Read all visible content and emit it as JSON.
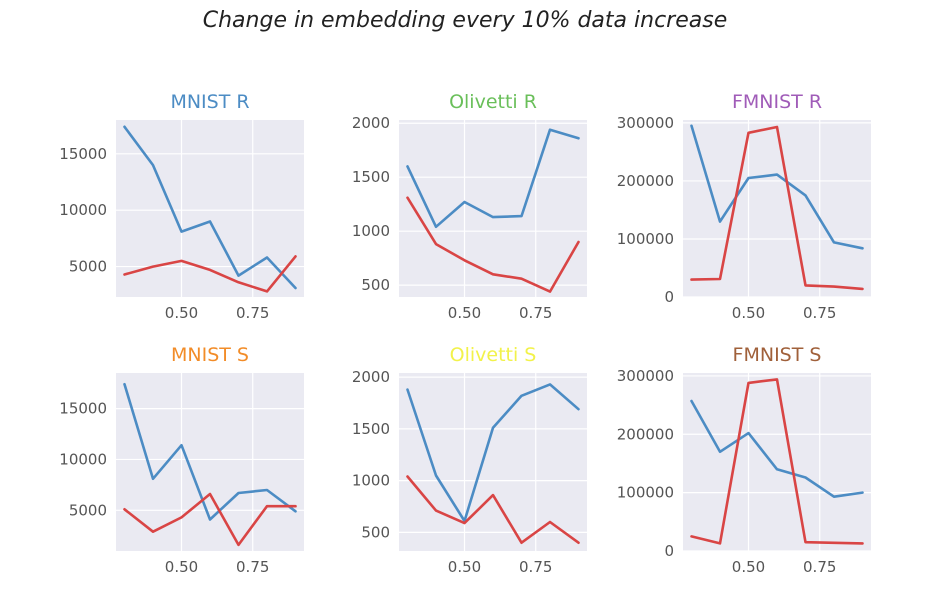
{
  "figure": {
    "suptitle": "Change in embedding every 10% data increase"
  },
  "style": {
    "axes_bg": "#eaeaf2",
    "grid": "#ffffff",
    "blue": "#4c8cc4",
    "red": "#d94545"
  },
  "chart_data": [
    {
      "type": "line",
      "title": "MNIST R",
      "title_color": "#4c8cc4",
      "x": [
        0.3,
        0.4,
        0.5,
        0.6,
        0.7,
        0.8,
        0.9
      ],
      "xlim": [
        0.27,
        0.93
      ],
      "xticks": [
        0.5,
        0.75
      ],
      "xticklabels": [
        "0.50",
        "0.75"
      ],
      "ylim": [
        2300,
        18000
      ],
      "yticks": [
        5000,
        10000,
        15000
      ],
      "yticklabels": [
        "5000",
        "10000",
        "15000"
      ],
      "series": [
        {
          "color": "#4c8cc4",
          "values": [
            17400,
            14000,
            8100,
            9000,
            4200,
            5800,
            3100
          ]
        },
        {
          "color": "#d94545",
          "values": [
            4300,
            5000,
            5500,
            4700,
            3600,
            2800,
            5900
          ]
        }
      ]
    },
    {
      "type": "line",
      "title": "Olivetti R",
      "title_color": "#6abf5a",
      "x": [
        0.3,
        0.4,
        0.5,
        0.6,
        0.7,
        0.8,
        0.9
      ],
      "xlim": [
        0.27,
        0.93
      ],
      "xticks": [
        0.5,
        0.75
      ],
      "xticklabels": [
        "0.50",
        "0.75"
      ],
      "ylim": [
        390,
        2030
      ],
      "yticks": [
        500,
        1000,
        1500,
        2000
      ],
      "yticklabels": [
        "500",
        "1000",
        "1500",
        "2000"
      ],
      "series": [
        {
          "color": "#4c8cc4",
          "values": [
            1600,
            1040,
            1270,
            1130,
            1140,
            1940,
            1860
          ]
        },
        {
          "color": "#d94545",
          "values": [
            1310,
            880,
            730,
            600,
            560,
            440,
            900
          ]
        }
      ]
    },
    {
      "type": "line",
      "title": "FMNIST R",
      "title_color": "#a05cb8",
      "x": [
        0.3,
        0.4,
        0.5,
        0.6,
        0.7,
        0.8,
        0.9
      ],
      "xlim": [
        0.27,
        0.93
      ],
      "xticks": [
        0.5,
        0.75
      ],
      "xticklabels": [
        "0.50",
        "0.75"
      ],
      "ylim": [
        0,
        305000
      ],
      "yticks": [
        0,
        100000,
        200000,
        300000
      ],
      "yticklabels": [
        "0",
        "100000",
        "200000",
        "300000"
      ],
      "series": [
        {
          "color": "#4c8cc4",
          "values": [
            295000,
            130000,
            205000,
            211000,
            175000,
            94000,
            84000
          ]
        },
        {
          "color": "#d94545",
          "values": [
            30000,
            31000,
            283000,
            293000,
            20000,
            18000,
            14000
          ]
        }
      ]
    },
    {
      "type": "line",
      "title": "MNIST S",
      "title_color": "#f28c28",
      "x": [
        0.3,
        0.4,
        0.5,
        0.6,
        0.7,
        0.8,
        0.9
      ],
      "xlim": [
        0.27,
        0.93
      ],
      "xticks": [
        0.5,
        0.75
      ],
      "xticklabels": [
        "0.50",
        "0.75"
      ],
      "ylim": [
        1000,
        18500
      ],
      "yticks": [
        5000,
        10000,
        15000
      ],
      "yticklabels": [
        "5000",
        "10000",
        "15000"
      ],
      "series": [
        {
          "color": "#4c8cc4",
          "values": [
            17400,
            8100,
            11400,
            4100,
            6700,
            7000,
            4900
          ]
        },
        {
          "color": "#d94545",
          "values": [
            5100,
            2900,
            4300,
            6600,
            1600,
            5400,
            5400
          ]
        }
      ]
    },
    {
      "type": "line",
      "title": "Olivetti S",
      "title_color": "#f2f24a",
      "x": [
        0.3,
        0.4,
        0.5,
        0.6,
        0.7,
        0.8,
        0.9
      ],
      "xlim": [
        0.27,
        0.93
      ],
      "xticks": [
        0.5,
        0.75
      ],
      "xticklabels": [
        "0.50",
        "0.75"
      ],
      "ylim": [
        320,
        2040
      ],
      "yticks": [
        500,
        1000,
        1500,
        2000
      ],
      "yticklabels": [
        "500",
        "1000",
        "1500",
        "2000"
      ],
      "series": [
        {
          "color": "#4c8cc4",
          "values": [
            1880,
            1050,
            610,
            1510,
            1820,
            1930,
            1690
          ]
        },
        {
          "color": "#d94545",
          "values": [
            1040,
            710,
            590,
            860,
            400,
            600,
            400
          ]
        }
      ]
    },
    {
      "type": "line",
      "title": "FMNIST S",
      "title_color": "#a0603a",
      "x": [
        0.3,
        0.4,
        0.5,
        0.6,
        0.7,
        0.8,
        0.9
      ],
      "xlim": [
        0.27,
        0.93
      ],
      "xticks": [
        0.5,
        0.75
      ],
      "xticklabels": [
        "0.50",
        "0.75"
      ],
      "ylim": [
        0,
        305000
      ],
      "yticks": [
        0,
        100000,
        200000,
        300000
      ],
      "yticklabels": [
        "0",
        "100000",
        "200000",
        "300000"
      ],
      "series": [
        {
          "color": "#4c8cc4",
          "values": [
            257000,
            170000,
            202000,
            140000,
            126000,
            93000,
            100000
          ]
        },
        {
          "color": "#d94545",
          "values": [
            25000,
            13000,
            288000,
            294000,
            15000,
            14000,
            13000
          ]
        }
      ]
    }
  ]
}
